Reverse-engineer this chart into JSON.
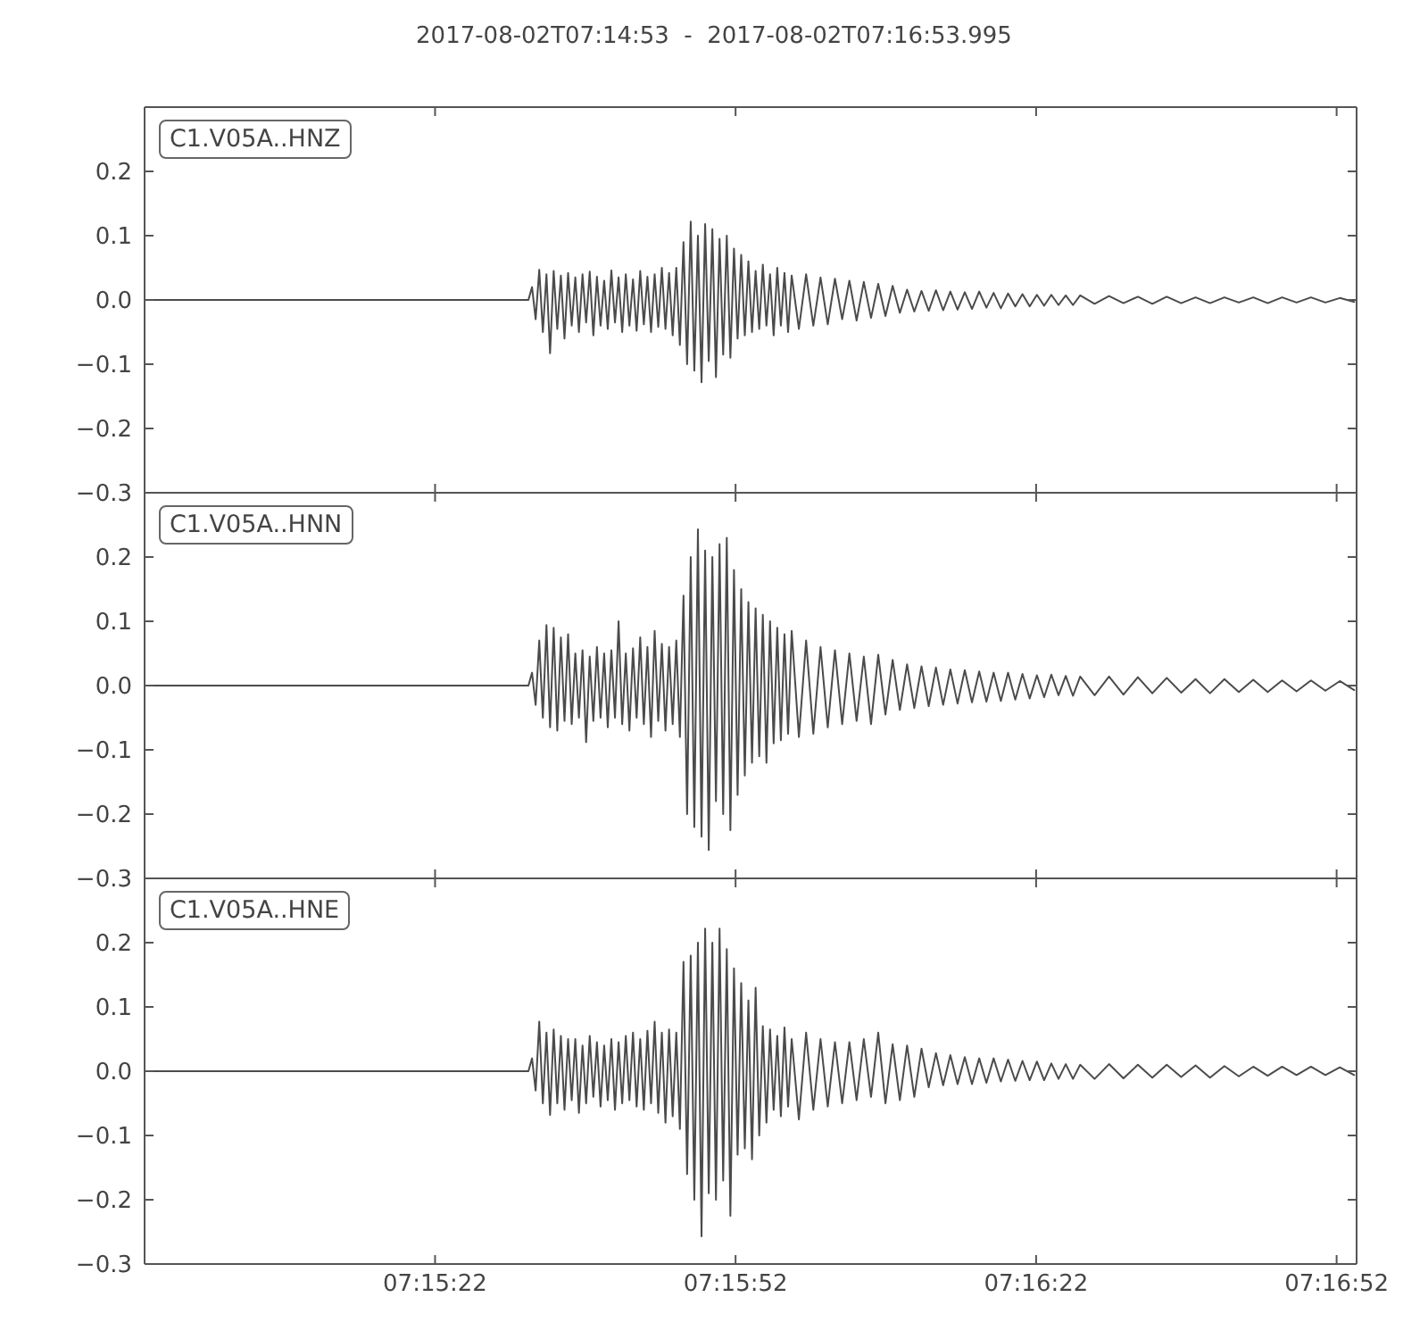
{
  "chart_data": [
    {
      "type": "line",
      "title": "2017-08-02T07:14:53  -  2017-08-02T07:16:53.995",
      "annotations": [
        "C1.V05A..HNZ"
      ],
      "color": "#4b4b4b",
      "x": [
        7.248056,
        7.2587,
        7.2588,
        7.2589,
        7.259,
        7.2591,
        7.2592,
        7.2593,
        7.2594,
        7.2595,
        7.2596,
        7.2597,
        7.2598,
        7.2599,
        7.26,
        7.2601,
        7.2602,
        7.2603,
        7.2604,
        7.2605,
        7.2606,
        7.2607,
        7.2608,
        7.2609,
        7.261,
        7.2611,
        7.2612,
        7.2613,
        7.2614,
        7.2615,
        7.2616,
        7.2617,
        7.2618,
        7.2619,
        7.262,
        7.2621,
        7.2622,
        7.2623,
        7.2624,
        7.2625,
        7.2626,
        7.2627,
        7.2628,
        7.2629,
        7.263,
        7.2631,
        7.2632,
        7.2633,
        7.2634,
        7.2635,
        7.2636,
        7.2637,
        7.2638,
        7.2639,
        7.264,
        7.2641,
        7.2642,
        7.2643,
        7.2644,
        7.2645,
        7.2646,
        7.2647,
        7.2648,
        7.2649,
        7.265,
        7.2651,
        7.2652,
        7.2653,
        7.2654,
        7.2655,
        7.2656,
        7.2657,
        7.2658,
        7.2659,
        7.266,
        7.2662,
        7.2664,
        7.2666,
        7.2668,
        7.267,
        7.2672,
        7.2674,
        7.2676,
        7.2678,
        7.268,
        7.2682,
        7.2684,
        7.2686,
        7.2688,
        7.269,
        7.2692,
        7.2694,
        7.2696,
        7.2698,
        7.27,
        7.2702,
        7.2704,
        7.2706,
        7.2708,
        7.271,
        7.2712,
        7.2714,
        7.2716,
        7.2718,
        7.272,
        7.2722,
        7.2724,
        7.2726,
        7.2728,
        7.273,
        7.2732,
        7.2734,
        7.2736,
        7.2738,
        7.274,
        7.2744,
        7.2748,
        7.2752,
        7.2756,
        7.276,
        7.2764,
        7.2768,
        7.2772,
        7.2776,
        7.278,
        7.2784,
        7.2788,
        7.2792,
        7.2796,
        7.28,
        7.2804,
        7.2808,
        7.2812,
        7.2816
      ],
      "values": [
        0,
        0,
        0.02,
        -0.03,
        0.047,
        -0.05,
        0.04,
        -0.083,
        0.045,
        -0.045,
        0.038,
        -0.06,
        0.042,
        -0.04,
        0.035,
        -0.05,
        0.04,
        -0.035,
        0.044,
        -0.055,
        0.036,
        -0.04,
        0.03,
        -0.045,
        0.046,
        -0.035,
        0.035,
        -0.05,
        0.04,
        -0.04,
        0.032,
        -0.048,
        0.045,
        -0.038,
        0.036,
        -0.05,
        0.04,
        -0.042,
        0.05,
        -0.045,
        0.042,
        -0.055,
        0.05,
        -0.07,
        0.09,
        -0.1,
        0.122,
        -0.11,
        0.1,
        -0.128,
        0.118,
        -0.095,
        0.11,
        -0.12,
        0.095,
        -0.085,
        0.1,
        -0.09,
        0.08,
        -0.06,
        0.07,
        -0.055,
        0.06,
        -0.05,
        0.045,
        -0.045,
        0.055,
        -0.04,
        0.04,
        -0.055,
        0.05,
        -0.04,
        0.042,
        -0.05,
        0.038,
        -0.045,
        0.04,
        -0.04,
        0.035,
        -0.038,
        0.033,
        -0.03,
        0.03,
        -0.032,
        0.028,
        -0.028,
        0.025,
        -0.025,
        0.022,
        -0.02,
        0.016,
        -0.018,
        0.014,
        -0.017,
        0.015,
        -0.016,
        0.013,
        -0.015,
        0.012,
        -0.014,
        0.013,
        -0.012,
        0.011,
        -0.013,
        0.01,
        -0.01,
        0.009,
        -0.01,
        0.008,
        -0.009,
        0.008,
        -0.008,
        0.007,
        -0.008,
        0.007,
        -0.006,
        0.006,
        -0.005,
        0.005,
        -0.006,
        0.005,
        -0.005,
        0.004,
        -0.005,
        0.004,
        -0.004,
        0.004,
        -0.005,
        0.004,
        -0.004,
        0.004,
        -0.004,
        0.003,
        -0.003
      ],
      "xlim": [
        7.248056,
        7.281665
      ],
      "xticks": [
        {
          "value": 7.256111,
          "label": null
        },
        {
          "value": 7.264444,
          "label": null
        },
        {
          "value": 7.272778,
          "label": null
        },
        {
          "value": 7.281111,
          "label": null
        }
      ],
      "ylim": [
        -0.3,
        0.3
      ],
      "yticks": [
        {
          "value": -0.3,
          "label": "−0.3"
        },
        {
          "value": -0.2,
          "label": "−0.2"
        },
        {
          "value": -0.1,
          "label": "−0.1"
        },
        {
          "value": 0,
          "label": "0.0"
        },
        {
          "value": 0.1,
          "label": "0.1"
        },
        {
          "value": 0.2,
          "label": "0.2"
        }
      ],
      "tick_labels": "y"
    },
    {
      "type": "line",
      "annotations": [
        "C1.V05A..HNN"
      ],
      "color": "#4b4b4b",
      "x": [
        7.248056,
        7.2587,
        7.2588,
        7.2589,
        7.259,
        7.2591,
        7.2592,
        7.2593,
        7.2594,
        7.2595,
        7.2596,
        7.2597,
        7.2598,
        7.2599,
        7.26,
        7.2601,
        7.2602,
        7.2603,
        7.2604,
        7.2605,
        7.2606,
        7.2607,
        7.2608,
        7.2609,
        7.261,
        7.2611,
        7.2612,
        7.2613,
        7.2614,
        7.2615,
        7.2616,
        7.2617,
        7.2618,
        7.2619,
        7.262,
        7.2621,
        7.2622,
        7.2623,
        7.2624,
        7.2625,
        7.2626,
        7.2627,
        7.2628,
        7.2629,
        7.263,
        7.2631,
        7.2632,
        7.2633,
        7.2634,
        7.2635,
        7.2636,
        7.2637,
        7.2638,
        7.2639,
        7.264,
        7.2641,
        7.2642,
        7.2643,
        7.2644,
        7.2645,
        7.2646,
        7.2647,
        7.2648,
        7.2649,
        7.265,
        7.2651,
        7.2652,
        7.2653,
        7.2654,
        7.2655,
        7.2656,
        7.2657,
        7.2658,
        7.2659,
        7.266,
        7.2662,
        7.2664,
        7.2666,
        7.2668,
        7.267,
        7.2672,
        7.2674,
        7.2676,
        7.2678,
        7.268,
        7.2682,
        7.2684,
        7.2686,
        7.2688,
        7.269,
        7.2692,
        7.2694,
        7.2696,
        7.2698,
        7.27,
        7.2702,
        7.2704,
        7.2706,
        7.2708,
        7.271,
        7.2712,
        7.2714,
        7.2716,
        7.2718,
        7.272,
        7.2722,
        7.2724,
        7.2726,
        7.2728,
        7.273,
        7.2732,
        7.2734,
        7.2736,
        7.2738,
        7.274,
        7.2744,
        7.2748,
        7.2752,
        7.2756,
        7.276,
        7.2764,
        7.2768,
        7.2772,
        7.2776,
        7.278,
        7.2784,
        7.2788,
        7.2792,
        7.2796,
        7.28,
        7.2804,
        7.2808,
        7.2812,
        7.2816
      ],
      "values": [
        0,
        0,
        0.02,
        -0.03,
        0.07,
        -0.05,
        0.094,
        -0.065,
        0.09,
        -0.07,
        0.075,
        -0.055,
        0.08,
        -0.06,
        0.05,
        -0.05,
        0.055,
        -0.088,
        0.045,
        -0.055,
        0.06,
        -0.05,
        0.05,
        -0.065,
        0.055,
        -0.05,
        0.1,
        -0.06,
        0.05,
        -0.07,
        0.058,
        -0.05,
        0.075,
        -0.06,
        0.06,
        -0.08,
        0.085,
        -0.055,
        0.065,
        -0.07,
        0.06,
        -0.06,
        0.07,
        -0.08,
        0.14,
        -0.2,
        0.2,
        -0.22,
        0.243,
        -0.235,
        0.21,
        -0.256,
        0.2,
        -0.18,
        0.22,
        -0.2,
        0.23,
        -0.225,
        0.18,
        -0.17,
        0.15,
        -0.14,
        0.13,
        -0.12,
        0.12,
        -0.11,
        0.11,
        -0.12,
        0.1,
        -0.09,
        0.09,
        -0.085,
        0.08,
        -0.075,
        0.085,
        -0.08,
        0.07,
        -0.075,
        0.06,
        -0.065,
        0.055,
        -0.06,
        0.05,
        -0.055,
        0.045,
        -0.06,
        0.048,
        -0.045,
        0.04,
        -0.038,
        0.033,
        -0.035,
        0.03,
        -0.032,
        0.028,
        -0.03,
        0.025,
        -0.028,
        0.024,
        -0.026,
        0.022,
        -0.025,
        0.02,
        -0.024,
        0.02,
        -0.022,
        0.018,
        -0.02,
        0.016,
        -0.018,
        0.017,
        -0.015,
        0.015,
        -0.016,
        0.014,
        -0.015,
        0.014,
        -0.014,
        0.013,
        -0.012,
        0.012,
        -0.011,
        0.01,
        -0.012,
        0.01,
        -0.01,
        0.009,
        -0.01,
        0.008,
        -0.009,
        0.008,
        -0.008,
        0.007,
        -0.007
      ],
      "xlim": [
        7.248056,
        7.281665
      ],
      "xticks": [
        {
          "value": 7.256111,
          "label": null
        },
        {
          "value": 7.264444,
          "label": null
        },
        {
          "value": 7.272778,
          "label": null
        },
        {
          "value": 7.281111,
          "label": null
        }
      ],
      "ylim": [
        -0.3,
        0.3
      ],
      "yticks": [
        {
          "value": -0.3,
          "label": "−0.3"
        },
        {
          "value": -0.2,
          "label": "−0.2"
        },
        {
          "value": -0.1,
          "label": "−0.1"
        },
        {
          "value": 0,
          "label": "0.0"
        },
        {
          "value": 0.1,
          "label": "0.1"
        },
        {
          "value": 0.2,
          "label": "0.2"
        }
      ],
      "tick_labels": "y"
    },
    {
      "type": "line",
      "annotations": [
        "C1.V05A..HNE"
      ],
      "color": "#4b4b4b",
      "x": [
        7.248056,
        7.2587,
        7.2588,
        7.2589,
        7.259,
        7.2591,
        7.2592,
        7.2593,
        7.2594,
        7.2595,
        7.2596,
        7.2597,
        7.2598,
        7.2599,
        7.26,
        7.2601,
        7.2602,
        7.2603,
        7.2604,
        7.2605,
        7.2606,
        7.2607,
        7.2608,
        7.2609,
        7.261,
        7.2611,
        7.2612,
        7.2613,
        7.2614,
        7.2615,
        7.2616,
        7.2617,
        7.2618,
        7.2619,
        7.262,
        7.2621,
        7.2622,
        7.2623,
        7.2624,
        7.2625,
        7.2626,
        7.2627,
        7.2628,
        7.2629,
        7.263,
        7.2631,
        7.2632,
        7.2633,
        7.2634,
        7.2635,
        7.2636,
        7.2637,
        7.2638,
        7.2639,
        7.264,
        7.2641,
        7.2642,
        7.2643,
        7.2644,
        7.2645,
        7.2646,
        7.2647,
        7.2648,
        7.2649,
        7.265,
        7.2651,
        7.2652,
        7.2653,
        7.2654,
        7.2655,
        7.2656,
        7.2657,
        7.2658,
        7.2659,
        7.266,
        7.2662,
        7.2664,
        7.2666,
        7.2668,
        7.267,
        7.2672,
        7.2674,
        7.2676,
        7.2678,
        7.268,
        7.2682,
        7.2684,
        7.2686,
        7.2688,
        7.269,
        7.2692,
        7.2694,
        7.2696,
        7.2698,
        7.27,
        7.2702,
        7.2704,
        7.2706,
        7.2708,
        7.271,
        7.2712,
        7.2714,
        7.2716,
        7.2718,
        7.272,
        7.2722,
        7.2724,
        7.2726,
        7.2728,
        7.273,
        7.2732,
        7.2734,
        7.2736,
        7.2738,
        7.274,
        7.2744,
        7.2748,
        7.2752,
        7.2756,
        7.276,
        7.2764,
        7.2768,
        7.2772,
        7.2776,
        7.278,
        7.2784,
        7.2788,
        7.2792,
        7.2796,
        7.28,
        7.2804,
        7.2808,
        7.2812,
        7.2816
      ],
      "values": [
        0,
        0,
        0.02,
        -0.03,
        0.077,
        -0.05,
        0.06,
        -0.068,
        0.065,
        -0.05,
        0.055,
        -0.06,
        0.05,
        -0.045,
        0.05,
        -0.065,
        0.04,
        -0.05,
        0.055,
        -0.04,
        0.045,
        -0.055,
        0.04,
        -0.045,
        0.05,
        -0.06,
        0.045,
        -0.05,
        0.055,
        -0.045,
        0.06,
        -0.055,
        0.05,
        -0.06,
        0.063,
        -0.05,
        0.077,
        -0.065,
        0.06,
        -0.08,
        0.065,
        -0.07,
        0.06,
        -0.09,
        0.17,
        -0.16,
        0.18,
        -0.2,
        0.2,
        -0.257,
        0.222,
        -0.19,
        0.2,
        -0.2,
        0.222,
        -0.17,
        0.19,
        -0.225,
        0.16,
        -0.13,
        0.137,
        -0.12,
        0.11,
        -0.137,
        0.13,
        -0.1,
        0.07,
        -0.08,
        0.065,
        -0.06,
        0.055,
        -0.07,
        0.068,
        -0.055,
        0.05,
        -0.075,
        0.06,
        -0.06,
        0.05,
        -0.055,
        0.045,
        -0.05,
        0.045,
        -0.045,
        0.05,
        -0.04,
        0.06,
        -0.05,
        0.042,
        -0.045,
        0.04,
        -0.04,
        0.035,
        -0.025,
        0.028,
        -0.022,
        0.025,
        -0.02,
        0.022,
        -0.02,
        0.02,
        -0.018,
        0.02,
        -0.016,
        0.018,
        -0.015,
        0.016,
        -0.014,
        0.015,
        -0.014,
        0.012,
        -0.012,
        0.011,
        -0.012,
        0.01,
        -0.012,
        0.011,
        -0.011,
        0.01,
        -0.01,
        0.01,
        -0.009,
        0.009,
        -0.01,
        0.008,
        -0.008,
        0.007,
        -0.007,
        0.007,
        -0.006,
        0.007,
        -0.006,
        0.006,
        -0.006
      ],
      "xlim": [
        7.248056,
        7.281665
      ],
      "xticks": [
        {
          "value": 7.256111,
          "label": "07:15:22"
        },
        {
          "value": 7.264444,
          "label": "07:15:52"
        },
        {
          "value": 7.272778,
          "label": "07:16:22"
        },
        {
          "value": 7.281111,
          "label": "07:16:52"
        }
      ],
      "ylim": [
        -0.3,
        0.3
      ],
      "yticks": [
        {
          "value": -0.3,
          "label": "−0.3"
        },
        {
          "value": -0.2,
          "label": "−0.2"
        },
        {
          "value": -0.1,
          "label": "−0.1"
        },
        {
          "value": 0,
          "label": "0.0"
        },
        {
          "value": 0.1,
          "label": "0.1"
        },
        {
          "value": 0.2,
          "label": "0.2"
        }
      ]
    }
  ]
}
